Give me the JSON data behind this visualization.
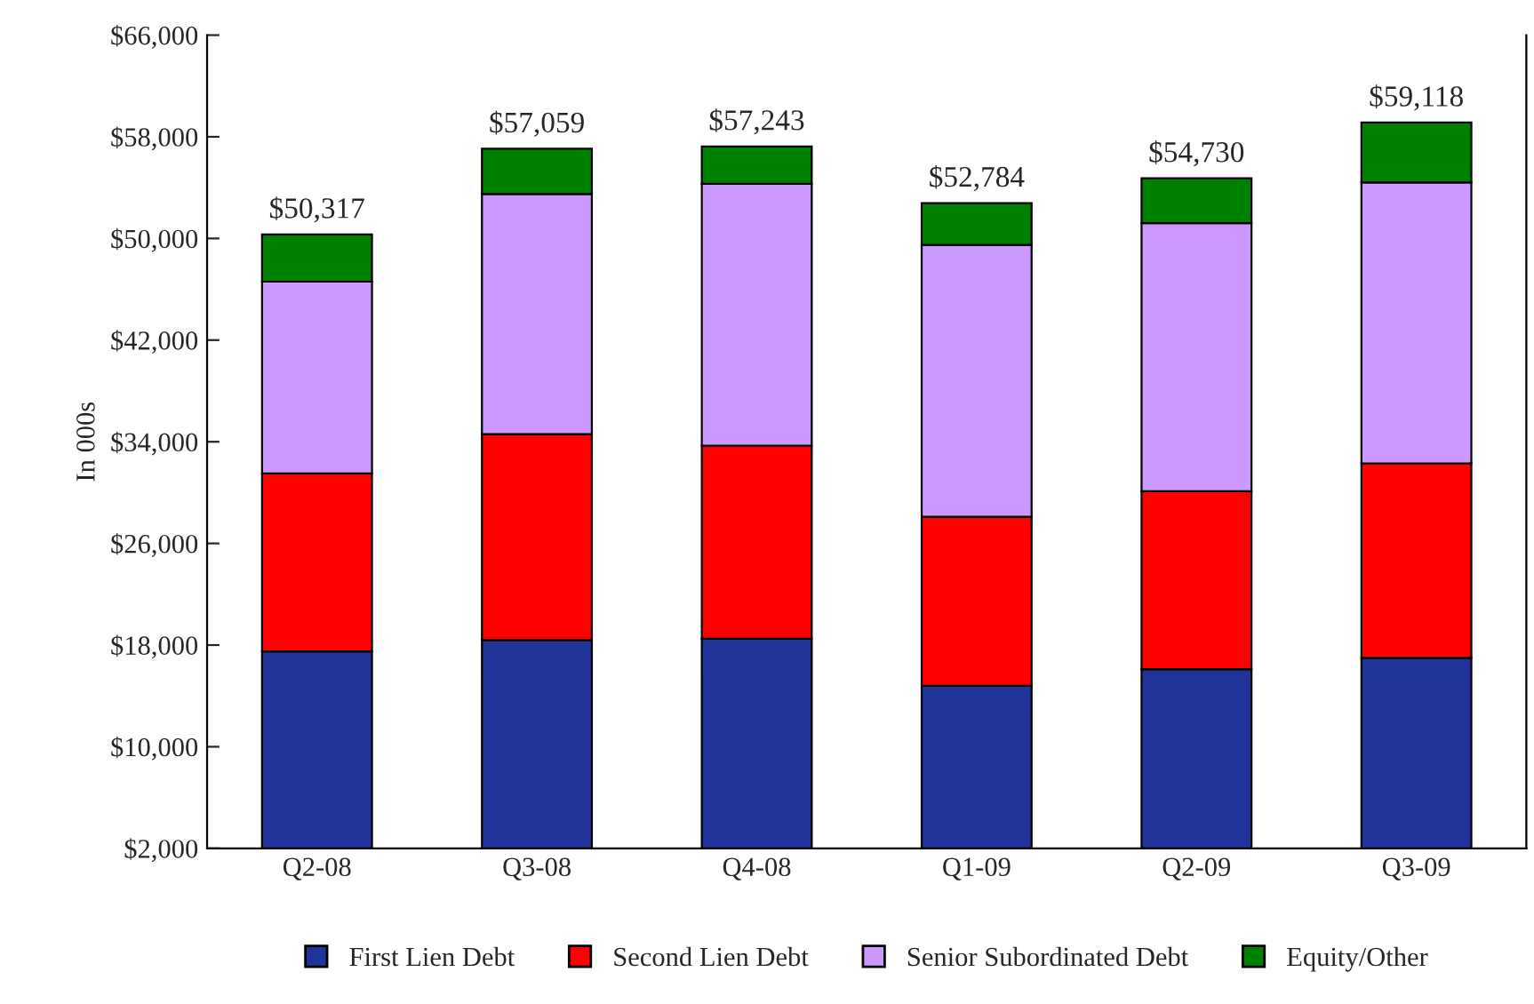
{
  "chart_data": {
    "type": "bar",
    "stacked": true,
    "ylabel": "In 000s",
    "categories": [
      "Q2-08",
      "Q3-08",
      "Q4-08",
      "Q1-09",
      "Q2-09",
      "Q3-09"
    ],
    "series": [
      {
        "name": "First Lien Debt",
        "color": "#1f3399",
        "values": [
          17500,
          18400,
          18500,
          14800,
          16100,
          17000
        ]
      },
      {
        "name": "Second Lien Debt",
        "color": "#ff0000",
        "values": [
          14000,
          16200,
          15200,
          13300,
          14000,
          15300
        ]
      },
      {
        "name": "Senior Subordinated Debt",
        "color": "#cc99ff",
        "values": [
          15100,
          18900,
          20600,
          21400,
          21100,
          22100
        ]
      },
      {
        "name": "Equity/Other",
        "color": "#008000",
        "values": [
          3717,
          3559,
          2943,
          3284,
          3530,
          4718
        ]
      }
    ],
    "totals": [
      "$50,317",
      "$57,059",
      "$57,243",
      "$52,784",
      "$54,730",
      "$59,118"
    ],
    "ylim": [
      2000,
      66000
    ],
    "yticks": [
      {
        "value": 2000,
        "label": "$2,000"
      },
      {
        "value": 10000,
        "label": "$10,000"
      },
      {
        "value": 18000,
        "label": "$18,000"
      },
      {
        "value": 26000,
        "label": "$26,000"
      },
      {
        "value": 34000,
        "label": "$34,000"
      },
      {
        "value": 42000,
        "label": "$42,000"
      },
      {
        "value": 50000,
        "label": "$50,000"
      },
      {
        "value": 58000,
        "label": "$58,000"
      },
      {
        "value": 66000,
        "label": "$66,000"
      }
    ],
    "grid": false,
    "legend": "bottom"
  }
}
